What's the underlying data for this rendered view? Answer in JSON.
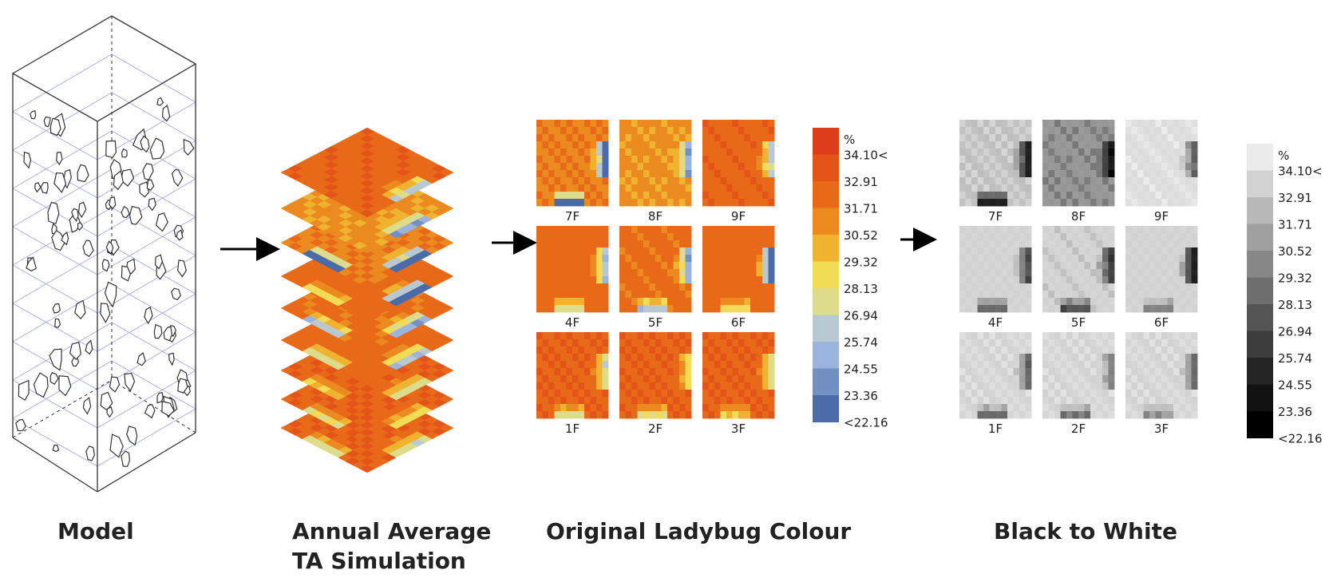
{
  "stages": {
    "model": "Model",
    "annual_line1": "Annual Average",
    "annual_line2": "TA  Simulation",
    "ladybug": "Original Ladybug Colour",
    "bw": "Black to White"
  },
  "floors": [
    "7F",
    "8F",
    "9F",
    "4F",
    "5F",
    "6F",
    "1F",
    "2F",
    "3F"
  ],
  "legend": {
    "unit": "%",
    "values": [
      "34.10<",
      "32.91",
      "31.71",
      "30.52",
      "29.32",
      "28.13",
      "26.94",
      "25.74",
      "24.55",
      "23.36",
      "<22.16"
    ],
    "colour_scale": [
      "#dd3d1a",
      "#e45419",
      "#e86a18",
      "#ea8a1f",
      "#efb330",
      "#f3dc55",
      "#dcdc8c",
      "#b8c9d2",
      "#9ab4dd",
      "#7390c4",
      "#4b6aa8"
    ],
    "grey_scale": [
      "#ebebeb",
      "#d2d2d2",
      "#b9b9b9",
      "#a0a0a0",
      "#878787",
      "#6e6e6e",
      "#555555",
      "#3c3c3c",
      "#252525",
      "#121212",
      "#000000"
    ]
  }
}
